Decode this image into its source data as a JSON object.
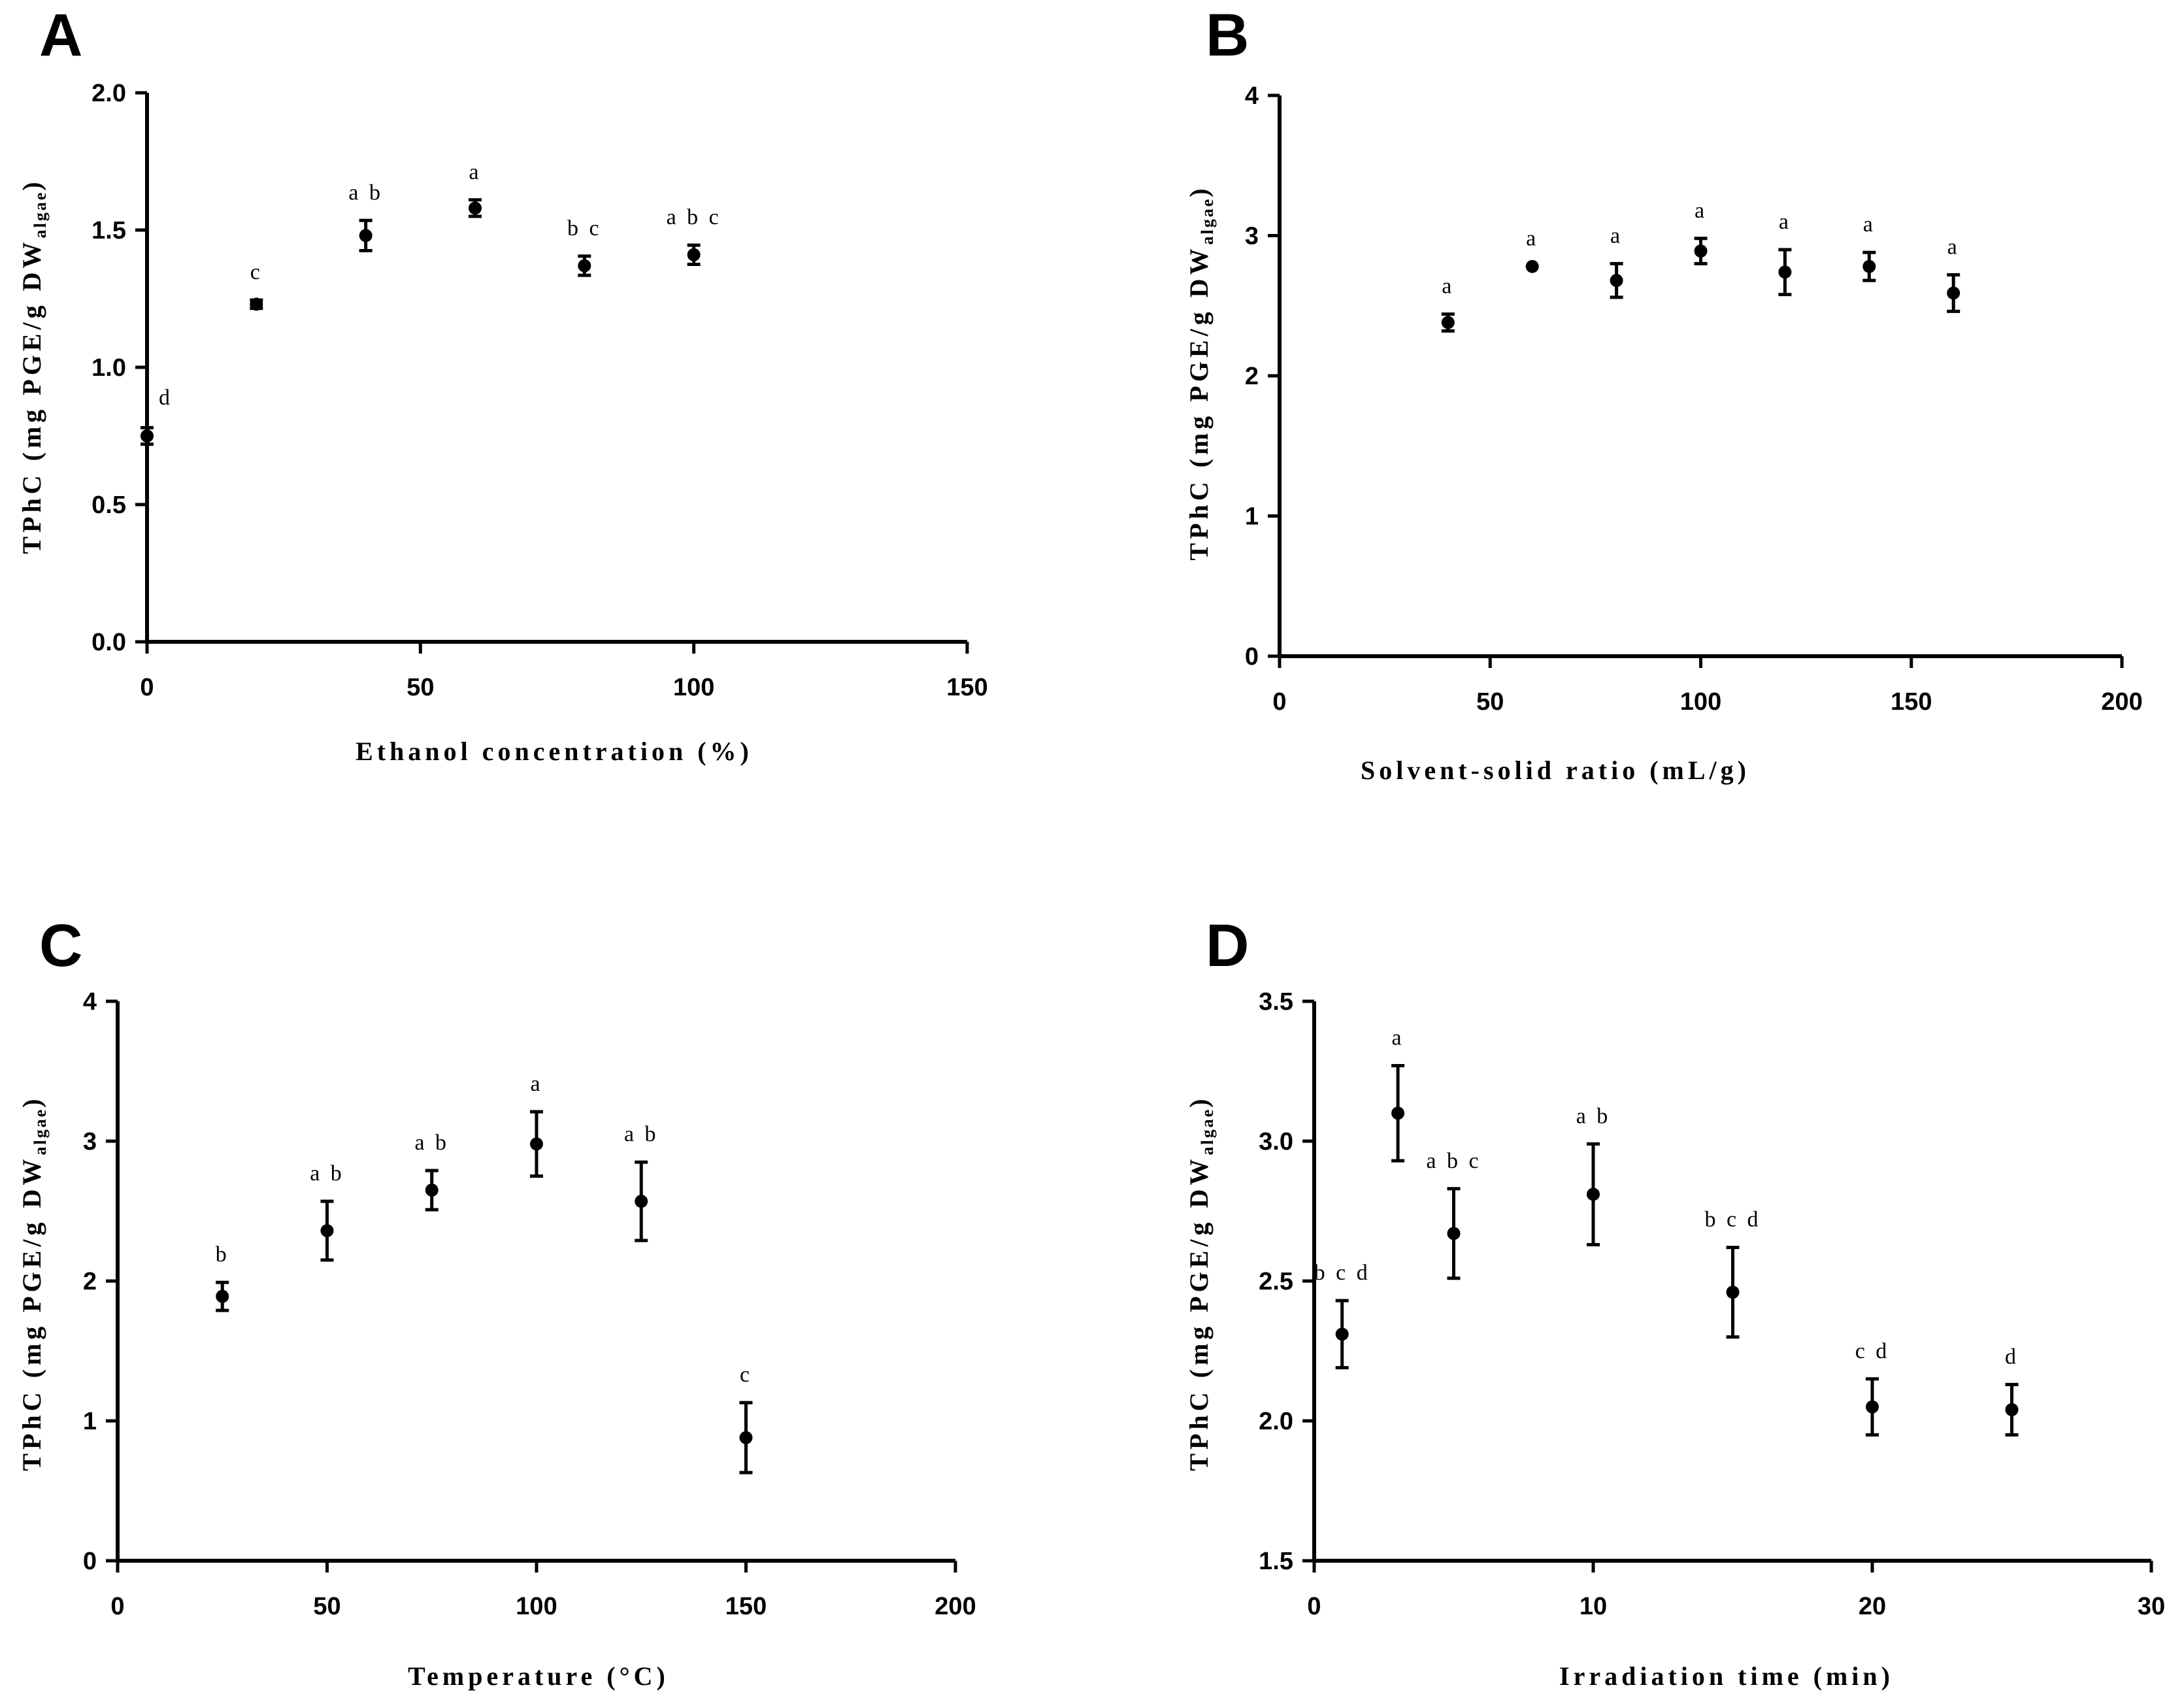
{
  "chart_data": [
    {
      "panel": "A",
      "type": "scatter",
      "xlabel": "Ethanol concentration (%)",
      "ylabel_main": "TPhC (mg PGE/g DW",
      "ylabel_sub": "algae",
      "ylabel_close": ")",
      "xlim": [
        0,
        150
      ],
      "ylim": [
        0.0,
        2.0
      ],
      "xticks": [
        0,
        50,
        100,
        150
      ],
      "xtick_labels": [
        "0",
        "50",
        "100",
        "150"
      ],
      "yticks": [
        0.0,
        0.5,
        1.0,
        1.5,
        2.0
      ],
      "ytick_labels": [
        "0.0",
        "0.5",
        "1.0",
        "1.5",
        "2.0"
      ],
      "x": [
        0,
        20,
        40,
        60,
        80,
        100
      ],
      "y": [
        0.75,
        1.23,
        1.48,
        1.58,
        1.37,
        1.41
      ],
      "err": [
        0.03,
        0.015,
        0.055,
        0.03,
        0.035,
        0.035
      ],
      "labels": [
        "d",
        "c",
        "a b",
        "a",
        "b c",
        "a b c"
      ],
      "label_side": [
        "right",
        "top",
        "top",
        "top",
        "top",
        "top"
      ]
    },
    {
      "panel": "B",
      "type": "scatter",
      "xlabel": "Solvent-solid ratio (mL/g)",
      "ylabel_main": "TPhC (mg PGE/g DW",
      "ylabel_sub": "algae",
      "ylabel_close": ")",
      "xlim": [
        0,
        200
      ],
      "ylim": [
        0,
        4
      ],
      "xticks": [
        0,
        50,
        100,
        150,
        200
      ],
      "xtick_labels": [
        "0",
        "50",
        "100",
        "150",
        "200"
      ],
      "yticks": [
        0,
        1,
        2,
        3,
        4
      ],
      "ytick_labels": [
        "0",
        "1",
        "2",
        "3",
        "4"
      ],
      "x": [
        40,
        60,
        80,
        100,
        120,
        140,
        160
      ],
      "y": [
        2.38,
        2.78,
        2.68,
        2.89,
        2.74,
        2.78,
        2.59
      ],
      "err": [
        0.06,
        0.0,
        0.12,
        0.09,
        0.16,
        0.1,
        0.13
      ],
      "labels": [
        "a",
        "a",
        "a",
        "a",
        "a",
        "a",
        "a"
      ],
      "label_side": [
        "top",
        "top",
        "top",
        "top",
        "top",
        "top",
        "top"
      ]
    },
    {
      "panel": "C",
      "type": "scatter",
      "xlabel": "Temperature (°C)",
      "ylabel_main": "TPhC (mg PGE/g DW",
      "ylabel_sub": "algae",
      "ylabel_close": ")",
      "xlim": [
        0,
        200
      ],
      "ylim": [
        0,
        4
      ],
      "xticks": [
        0,
        50,
        100,
        150,
        200
      ],
      "xtick_labels": [
        "0",
        "50",
        "100",
        "150",
        "200"
      ],
      "yticks": [
        0,
        1,
        2,
        3,
        4
      ],
      "ytick_labels": [
        "0",
        "1",
        "2",
        "3",
        "4"
      ],
      "x": [
        25,
        50,
        75,
        100,
        125,
        150
      ],
      "y": [
        1.89,
        2.36,
        2.65,
        2.98,
        2.57,
        0.88
      ],
      "err": [
        0.1,
        0.21,
        0.14,
        0.23,
        0.28,
        0.25
      ],
      "labels": [
        "b",
        "a b",
        "a b",
        "a",
        "a b",
        "c"
      ],
      "label_side": [
        "top",
        "top",
        "top",
        "top",
        "top",
        "top"
      ]
    },
    {
      "panel": "D",
      "type": "scatter",
      "xlabel": "Irradiation time (min)",
      "ylabel_main": "TPhC (mg PGE/g DW",
      "ylabel_sub": "algae",
      "ylabel_close": ")",
      "xlim": [
        0,
        30
      ],
      "ylim": [
        1.5,
        3.5
      ],
      "xticks": [
        0,
        10,
        20,
        30
      ],
      "xtick_labels": [
        "0",
        "10",
        "20",
        "30"
      ],
      "yticks": [
        1.5,
        2.0,
        2.5,
        3.0,
        3.5
      ],
      "ytick_labels": [
        "1.5",
        "2.0",
        "2.5",
        "3.0",
        "3.5"
      ],
      "x": [
        1,
        3,
        5,
        10,
        15,
        20,
        25
      ],
      "y": [
        2.31,
        3.1,
        2.67,
        2.81,
        2.46,
        2.05,
        2.04
      ],
      "err": [
        0.12,
        0.17,
        0.16,
        0.18,
        0.16,
        0.1,
        0.09
      ],
      "labels": [
        "b c d",
        "a",
        "a b c",
        "a b",
        "b c d",
        "c d",
        "d"
      ],
      "label_side": [
        "top",
        "top",
        "top",
        "top",
        "top",
        "top",
        "top"
      ]
    }
  ]
}
